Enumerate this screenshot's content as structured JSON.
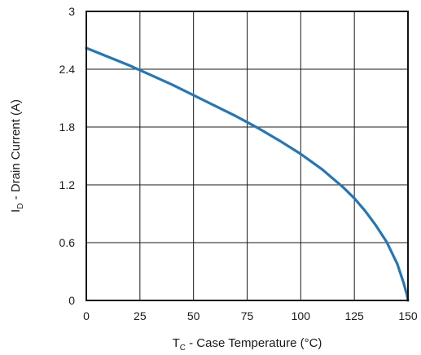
{
  "chart_data": {
    "type": "line",
    "xlabel": {
      "main": "T",
      "sub": "C",
      "rest": " - Case Temperature (°C)"
    },
    "ylabel": {
      "main": "I",
      "sub": "D",
      "rest": " - Drain Current (A)"
    },
    "xlim": [
      0,
      150
    ],
    "ylim": [
      0,
      3
    ],
    "x_ticks": [
      0,
      25,
      50,
      75,
      100,
      125,
      150
    ],
    "y_ticks": [
      0,
      0.6,
      1.2,
      1.8,
      2.4,
      3
    ],
    "x_tick_labels": [
      "0",
      "25",
      "50",
      "75",
      "100",
      "125",
      "150"
    ],
    "y_tick_labels": [
      "0",
      "0.6",
      "1.2",
      "1.8",
      "2.4",
      "3"
    ],
    "grid": true,
    "series": [
      {
        "color": "#2377b8",
        "x": [
          0,
          10,
          20,
          25,
          30,
          40,
          50,
          60,
          70,
          75,
          80,
          90,
          100,
          110,
          120,
          125,
          130,
          135,
          140,
          145,
          148,
          149.5,
          150
        ],
        "y": [
          2.62,
          2.53,
          2.44,
          2.39,
          2.34,
          2.24,
          2.13,
          2.02,
          1.91,
          1.85,
          1.79,
          1.66,
          1.52,
          1.36,
          1.17,
          1.06,
          0.93,
          0.78,
          0.61,
          0.38,
          0.18,
          0.06,
          0.0
        ]
      }
    ]
  }
}
